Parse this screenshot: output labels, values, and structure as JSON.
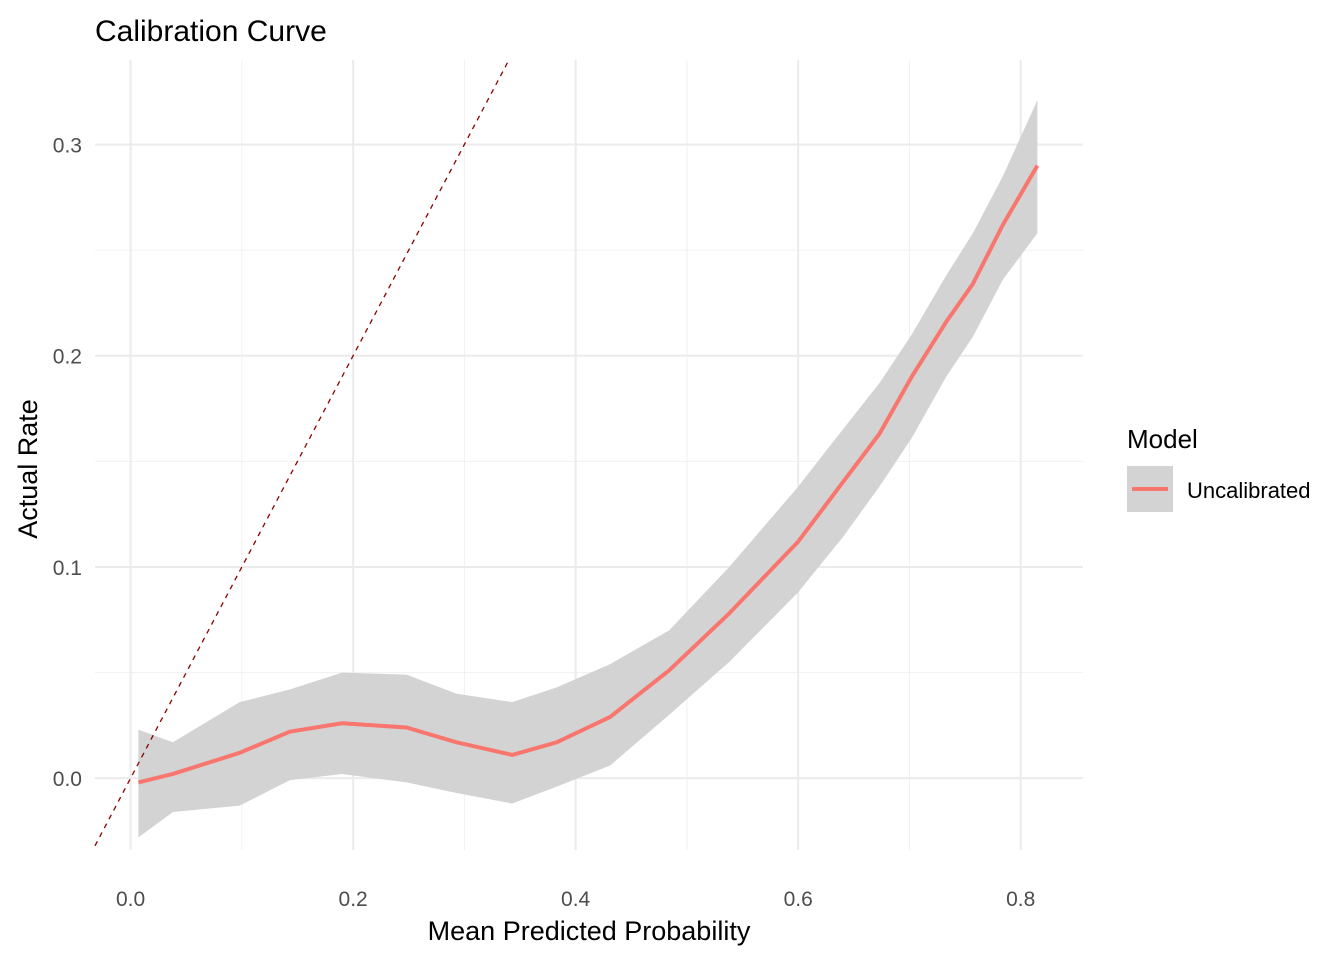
{
  "chart_data": {
    "type": "line",
    "title": "Calibration Curve",
    "xlabel": "Mean Predicted Probability",
    "ylabel": "Actual Rate",
    "xlim": [
      -0.032,
      0.856
    ],
    "ylim": [
      -0.034,
      0.34
    ],
    "x_ticks": [
      0.0,
      0.2,
      0.4,
      0.6,
      0.8
    ],
    "x_tick_labels": [
      "0.0",
      "0.2",
      "0.4",
      "0.6",
      "0.8"
    ],
    "y_ticks": [
      0.0,
      0.1,
      0.2,
      0.3
    ],
    "y_tick_labels": [
      "0.0",
      "0.1",
      "0.2",
      "0.3"
    ],
    "grid": true,
    "legend": {
      "title": "Model",
      "placement": "right",
      "entries": [
        "Uncalibrated"
      ]
    },
    "reference_line": {
      "type": "diagonal y=x",
      "style": "dashed",
      "color": "#8B0000"
    },
    "series": [
      {
        "name": "Uncalibrated",
        "color": "#F8766D",
        "band_color": "#D3D3D3",
        "x": [
          0.007,
          0.038,
          0.098,
          0.143,
          0.19,
          0.248,
          0.293,
          0.343,
          0.383,
          0.431,
          0.484,
          0.538,
          0.6,
          0.64,
          0.673,
          0.702,
          0.733,
          0.757,
          0.784,
          0.815
        ],
        "y": [
          -0.002,
          0.002,
          0.012,
          0.022,
          0.026,
          0.024,
          0.017,
          0.011,
          0.017,
          0.029,
          0.051,
          0.078,
          0.112,
          0.14,
          0.163,
          0.19,
          0.216,
          0.234,
          0.262,
          0.29
        ],
        "upper": [
          0.023,
          0.017,
          0.036,
          0.042,
          0.05,
          0.049,
          0.04,
          0.036,
          0.043,
          0.054,
          0.07,
          0.1,
          0.138,
          0.165,
          0.187,
          0.21,
          0.238,
          0.258,
          0.285,
          0.321
        ],
        "lower": [
          -0.028,
          -0.016,
          -0.013,
          -0.001,
          0.002,
          -0.002,
          -0.007,
          -0.012,
          -0.004,
          0.006,
          0.03,
          0.055,
          0.088,
          0.114,
          0.138,
          0.161,
          0.19,
          0.209,
          0.236,
          0.258
        ]
      }
    ]
  }
}
